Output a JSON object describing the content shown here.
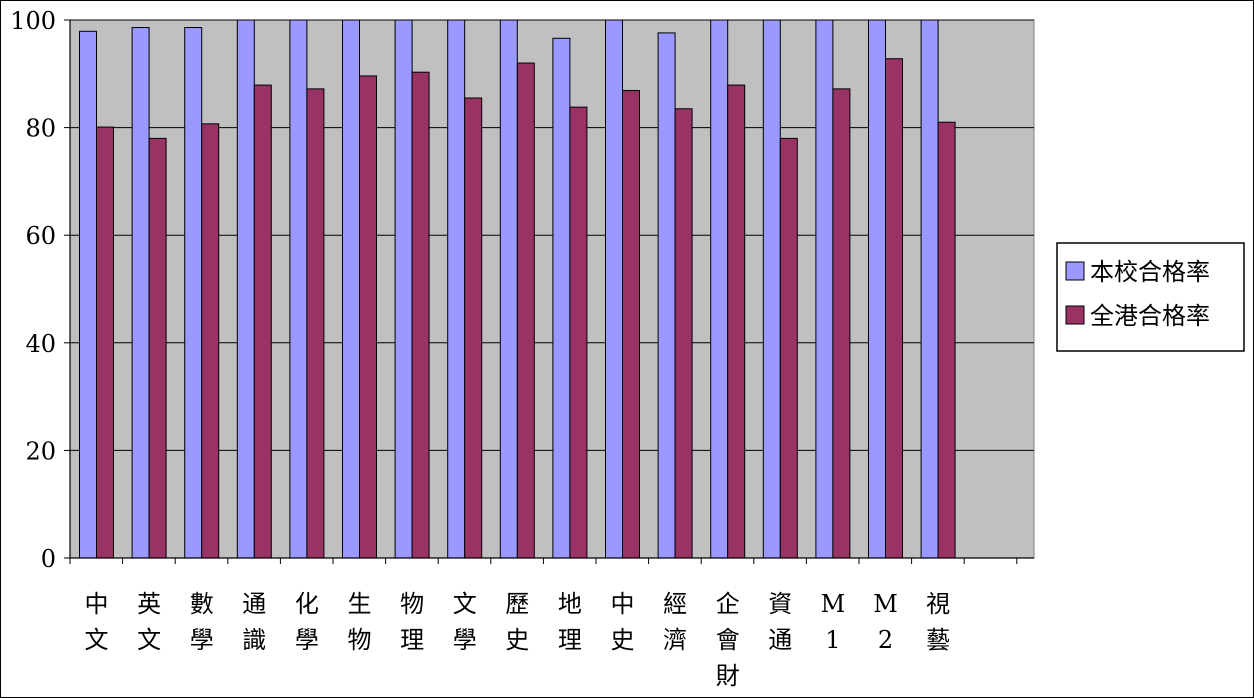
{
  "chart_data": {
    "type": "bar",
    "categories": [
      "中文",
      "英文",
      "數學",
      "通識",
      "化學",
      "生物",
      "物理",
      "文學",
      "歷史",
      "地理",
      "中史",
      "經濟",
      "企會財",
      "資通",
      "M1",
      "M2",
      "視藝"
    ],
    "series": [
      {
        "name": "本校合格率",
        "color": "#9999ff",
        "values": [
          97.9,
          98.6,
          98.6,
          100,
          100,
          100,
          100,
          100,
          100,
          96.6,
          100,
          97.6,
          100,
          100,
          100,
          100,
          100
        ]
      },
      {
        "name": "全港合格率",
        "color": "#993366",
        "values": [
          80.1,
          78.0,
          80.7,
          87.9,
          87.2,
          89.6,
          90.3,
          85.5,
          92.0,
          83.8,
          86.9,
          83.5,
          87.9,
          78.0,
          87.2,
          92.8,
          81.0
        ]
      }
    ],
    "title": "",
    "xlabel": "",
    "ylabel": "",
    "ylim": [
      0,
      100
    ],
    "yticks": [
      0,
      20,
      40,
      60,
      80,
      100
    ],
    "grid": true,
    "legend_position": "right",
    "plot_background": "#c0c0c0"
  }
}
